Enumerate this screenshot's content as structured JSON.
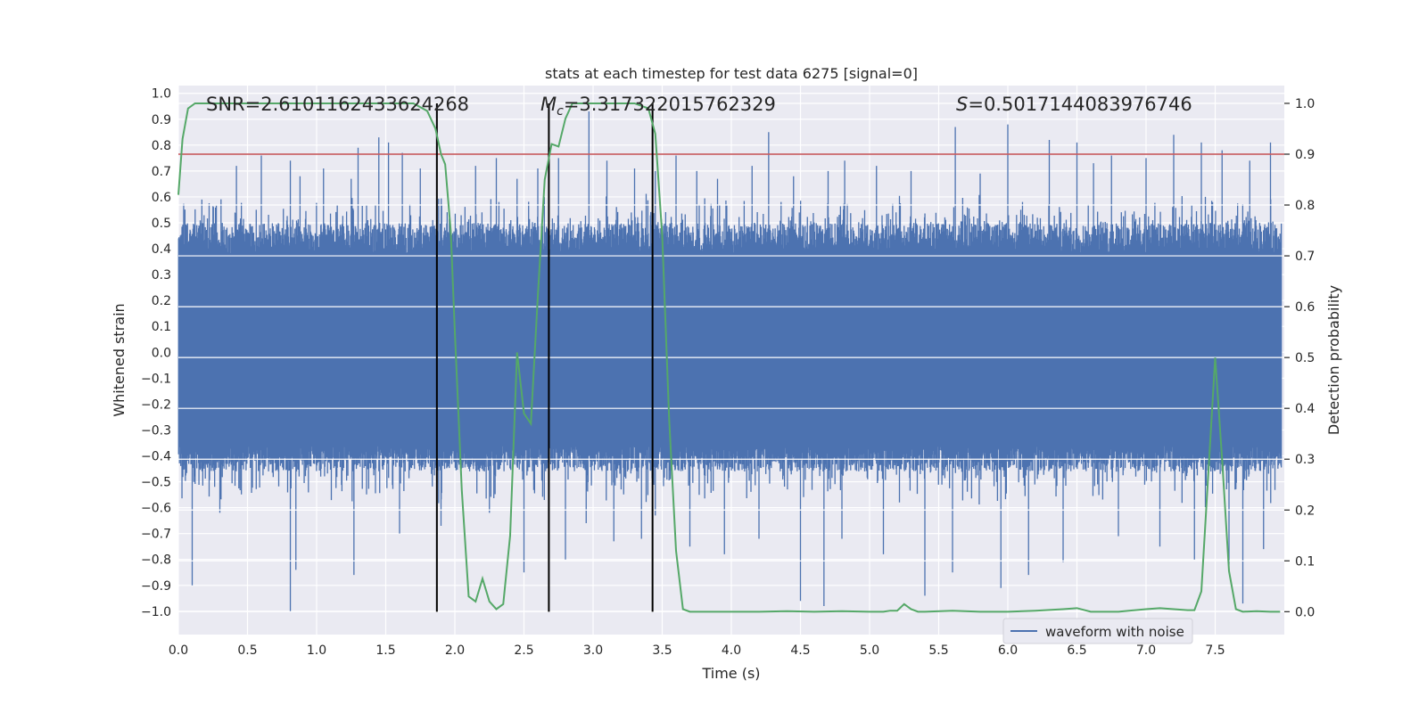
{
  "chart_data": {
    "type": "line",
    "title": "stats at each timestep for test data 6275 [signal=0]",
    "xlabel": "Time (s)",
    "ylabel": "Whitened strain",
    "y2label": "Detection probability",
    "xlim": [
      0.0,
      8.0
    ],
    "ylim": [
      -1.09,
      1.03
    ],
    "y2lim": [
      -0.045,
      1.035
    ],
    "xticks": [
      0.0,
      0.5,
      1.0,
      1.5,
      2.0,
      2.5,
      3.0,
      3.5,
      4.0,
      4.5,
      5.0,
      5.5,
      6.0,
      6.5,
      7.0,
      7.5
    ],
    "xtick_labels": [
      "0.0",
      "0.5",
      "1.0",
      "1.5",
      "2.0",
      "2.5",
      "3.0",
      "3.5",
      "4.0",
      "4.5",
      "5.0",
      "5.5",
      "6.0",
      "6.5",
      "7.0",
      "7.5"
    ],
    "yticks": [
      1.0,
      0.9,
      0.8,
      0.7,
      0.6,
      0.5,
      0.4,
      0.3,
      0.2,
      0.1,
      0.0,
      -0.1,
      -0.2,
      -0.3,
      -0.4,
      -0.5,
      -0.6,
      -0.7,
      -0.8,
      -0.9,
      -1.0
    ],
    "ytick_labels": [
      "1.0",
      "0.9",
      "0.8",
      "0.7",
      "0.6",
      "0.5",
      "0.4",
      "0.3",
      "0.2",
      "0.1",
      "0.0",
      "−0.1",
      "−0.2",
      "−0.3",
      "−0.4",
      "−0.5",
      "−0.6",
      "−0.7",
      "−0.8",
      "−0.9",
      "−1.0"
    ],
    "y2ticks": [
      1.0,
      0.9,
      0.8,
      0.7,
      0.6,
      0.5,
      0.4,
      0.3,
      0.2,
      0.1,
      0.0
    ],
    "y2tick_labels": [
      "1.0",
      "0.9",
      "0.8",
      "0.7",
      "0.6",
      "0.5",
      "0.4",
      "0.3",
      "0.2",
      "0.1",
      "0.0"
    ],
    "series": [
      {
        "name": "waveform with noise",
        "axis": "left",
        "color": "#4c72b0",
        "envelope_note": "dense noisy strain trace; typical excursions between about -0.45 and 0.55, spikes to about 0.93 and -1.0",
        "peak_times": [
          0.17,
          0.42,
          0.6,
          0.81,
          0.88,
          1.05,
          1.25,
          1.3,
          1.45,
          1.52,
          1.62,
          1.75,
          1.87,
          2.15,
          2.3,
          2.45,
          2.6,
          2.75,
          2.97,
          3.1,
          3.3,
          3.45,
          3.6,
          3.75,
          3.9,
          4.15,
          4.27,
          4.45,
          4.7,
          4.82,
          5.05,
          5.3,
          5.62,
          5.8,
          6.0,
          6.3,
          6.5,
          6.62,
          6.75,
          7.0,
          7.2,
          7.4,
          7.55,
          7.75,
          7.9
        ],
        "peak_values": [
          0.59,
          0.72,
          0.76,
          0.74,
          0.68,
          0.71,
          0.67,
          0.79,
          0.83,
          0.81,
          0.77,
          0.71,
          0.78,
          0.72,
          0.75,
          0.67,
          0.71,
          0.75,
          0.93,
          0.74,
          0.71,
          0.7,
          0.76,
          0.7,
          0.67,
          0.72,
          0.85,
          0.68,
          0.7,
          0.74,
          0.72,
          0.7,
          0.87,
          0.69,
          0.88,
          0.82,
          0.81,
          0.73,
          0.76,
          0.75,
          0.84,
          0.81,
          0.78,
          0.74,
          0.81
        ],
        "trough_times": [
          0.1,
          0.3,
          0.81,
          0.85,
          1.27,
          1.6,
          1.9,
          2.25,
          2.5,
          2.8,
          2.95,
          3.15,
          3.35,
          3.45,
          3.7,
          3.95,
          4.2,
          4.5,
          4.67,
          4.8,
          5.1,
          5.4,
          5.6,
          5.95,
          6.15,
          6.4,
          6.8,
          7.1,
          7.35,
          7.6,
          7.7,
          7.85
        ],
        "trough_values": [
          -0.9,
          -0.62,
          -1.0,
          -0.84,
          -0.86,
          -0.7,
          -0.67,
          -0.62,
          -0.85,
          -0.8,
          -0.66,
          -0.73,
          -0.72,
          -0.63,
          -0.75,
          -0.78,
          -0.72,
          -0.96,
          -0.98,
          -0.72,
          -0.78,
          -0.94,
          -0.85,
          -0.91,
          -0.86,
          -0.81,
          -0.71,
          -0.75,
          -0.8,
          -0.82,
          -0.97,
          -0.76
        ]
      },
      {
        "name": "detection probability",
        "axis": "right",
        "color": "#55a868",
        "x": [
          0.0,
          0.03,
          0.07,
          0.12,
          0.2,
          0.4,
          0.6,
          0.8,
          1.0,
          1.2,
          1.4,
          1.6,
          1.7,
          1.8,
          1.86,
          1.9,
          1.93,
          1.97,
          2.0,
          2.05,
          2.1,
          2.15,
          2.2,
          2.25,
          2.3,
          2.35,
          2.4,
          2.45,
          2.5,
          2.55,
          2.6,
          2.65,
          2.7,
          2.75,
          2.8,
          2.85,
          2.9,
          2.95,
          3.0,
          3.1,
          3.2,
          3.3,
          3.4,
          3.45,
          3.5,
          3.55,
          3.6,
          3.65,
          3.7,
          3.75,
          3.8,
          4.0,
          4.2,
          4.4,
          4.6,
          4.8,
          5.0,
          5.1,
          5.15,
          5.2,
          5.25,
          5.3,
          5.35,
          5.4,
          5.6,
          5.8,
          6.0,
          6.2,
          6.4,
          6.5,
          6.6,
          6.8,
          7.0,
          7.1,
          7.2,
          7.3,
          7.35,
          7.4,
          7.45,
          7.5,
          7.55,
          7.6,
          7.65,
          7.7,
          7.8,
          7.9,
          7.97
        ],
        "y": [
          0.82,
          0.93,
          0.99,
          1.0,
          1.0,
          1.0,
          1.0,
          1.0,
          1.0,
          1.0,
          1.0,
          1.0,
          1.0,
          0.985,
          0.95,
          0.9,
          0.88,
          0.75,
          0.55,
          0.24,
          0.03,
          0.02,
          0.065,
          0.02,
          0.005,
          0.015,
          0.15,
          0.51,
          0.39,
          0.37,
          0.62,
          0.85,
          0.92,
          0.915,
          0.97,
          1.0,
          1.0,
          1.0,
          1.0,
          1.0,
          1.0,
          1.0,
          0.99,
          0.94,
          0.74,
          0.38,
          0.12,
          0.005,
          0.0,
          0.0,
          0.0,
          0.0,
          0.0,
          0.001,
          0.0,
          0.001,
          0.0,
          0.0,
          0.002,
          0.002,
          0.015,
          0.005,
          0.0,
          0.0,
          0.002,
          0.0,
          0.0,
          0.002,
          0.005,
          0.007,
          0.0,
          0.0,
          0.005,
          0.007,
          0.005,
          0.003,
          0.003,
          0.04,
          0.27,
          0.5,
          0.3,
          0.08,
          0.005,
          0.0,
          0.001,
          0.0,
          0.0
        ]
      }
    ],
    "threshold_line": {
      "axis": "right",
      "value": 0.9,
      "color": "#c44e52"
    },
    "event_lines_x": [
      1.87,
      2.68,
      3.43
    ],
    "event_line_color": "#000000",
    "annotations": [
      "SNR=2.6101162433624268",
      "M_c=3.317322015762329",
      "S=0.5017144083976746"
    ],
    "annotation_parts": {
      "snr": "SNR=2.6101162433624268",
      "mc_symbol": "M",
      "mc_sub": "c",
      "mc_value": "=3.317322015762329",
      "s_symbol": "S",
      "s_value": "=0.5017144083976746"
    },
    "legend": {
      "label": "waveform with noise",
      "placement": "lower-right"
    },
    "grid": true,
    "colors": {
      "plot_bg": "#eaeaf2",
      "grid": "#ffffff",
      "text": "#262626"
    }
  }
}
